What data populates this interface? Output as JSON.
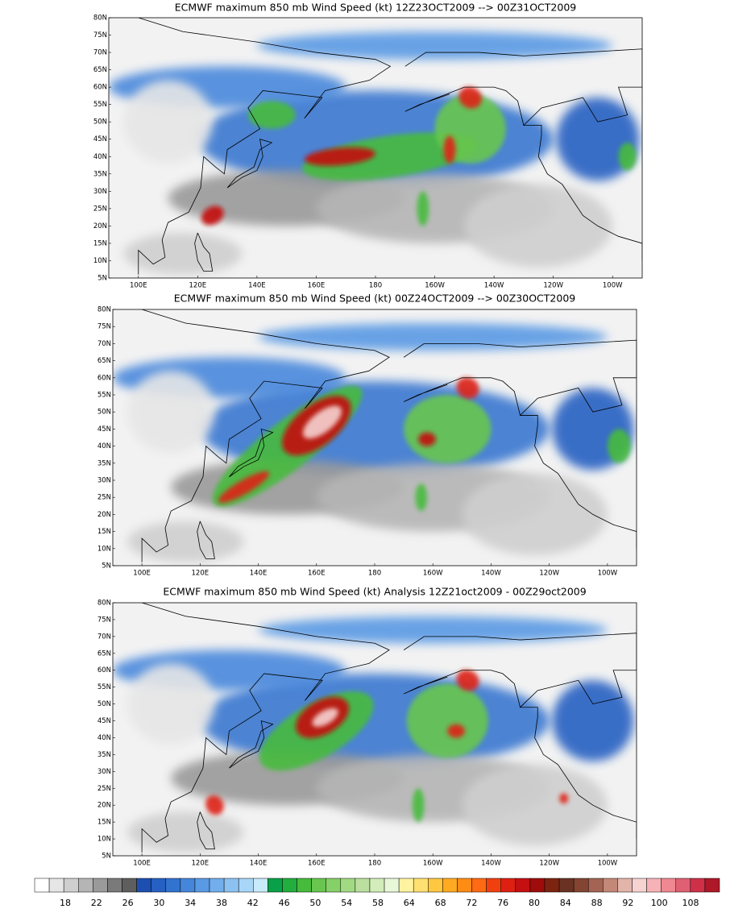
{
  "panels": [
    {
      "title": "ECMWF maximum 850 mb Wind Speed (kt) 12Z23OCT2009 --> 00Z31OCT2009"
    },
    {
      "title": "ECMWF maximum 850 mb Wind Speed (kt) 00Z24OCT2009 --> 00Z30OCT2009"
    },
    {
      "title": "ECMWF maximum 850 mb Wind Speed (kt) Analysis 12Z21oct2009 - 00Z29oct2009"
    }
  ],
  "lat_labels": [
    "80N",
    "75N",
    "70N",
    "65N",
    "60N",
    "55N",
    "50N",
    "45N",
    "40N",
    "35N",
    "30N",
    "25N",
    "20N",
    "15N",
    "10N",
    "5N"
  ],
  "lon_labels": [
    "100E",
    "120E",
    "140E",
    "160E",
    "180",
    "160W",
    "140W",
    "120W",
    "100W"
  ],
  "colorbar": {
    "labels": [
      18,
      22,
      26,
      30,
      34,
      38,
      42,
      46,
      50,
      54,
      58,
      64,
      68,
      72,
      76,
      80,
      84,
      88,
      92,
      100,
      108
    ],
    "colors": [
      "#ffffff",
      "#e6e6e6",
      "#cfcfcf",
      "#b5b5b5",
      "#9a9a9a",
      "#7a7a7a",
      "#5e5e5e",
      "#1d4fb0",
      "#2660c2",
      "#3273cf",
      "#4686da",
      "#5a9ae4",
      "#72aeec",
      "#8cc2f2",
      "#a8d6f7",
      "#c8eafb",
      "#08a048",
      "#22ae3e",
      "#46bb3c",
      "#68c650",
      "#86d068",
      "#a2da84",
      "#badf9e",
      "#d2edba",
      "#e8f7d8",
      "#fff3a0",
      "#ffe070",
      "#ffc840",
      "#ffaa20",
      "#ff8c14",
      "#ff6a12",
      "#f04010",
      "#de2012",
      "#c41010",
      "#9e0c0c",
      "#7c2410",
      "#6a3222",
      "#844432",
      "#a46454",
      "#c48878",
      "#e2b4aa",
      "#f6d2d0",
      "#f7b2b8",
      "#ef8890",
      "#df6072",
      "#cf3048",
      "#ae1828"
    ]
  }
}
